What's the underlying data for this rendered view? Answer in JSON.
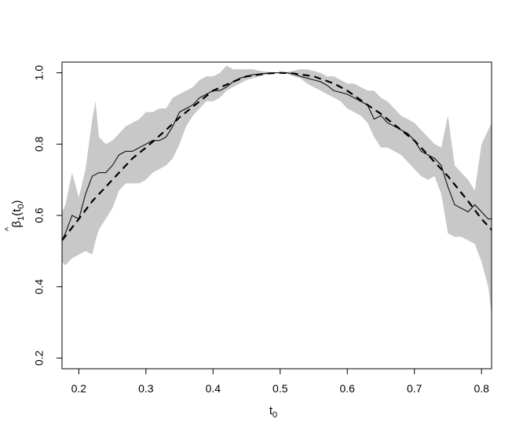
{
  "chart_data": {
    "type": "line",
    "title": "",
    "xlabel": {
      "base": "t",
      "sub": "0"
    },
    "ylabel": {
      "hat": "^",
      "base": "β",
      "sub1": "1",
      "open": "(t",
      "sub2": "0",
      "close": ")"
    },
    "xlim": [
      0.175,
      0.815
    ],
    "ylim": [
      0.17,
      1.03
    ],
    "xticks": [
      0.2,
      0.3,
      0.4,
      0.5,
      0.6,
      0.7,
      0.8
    ],
    "xtick_labels": [
      "0.2",
      "0.3",
      "0.4",
      "0.5",
      "0.6",
      "0.7",
      "0.8"
    ],
    "yticks": [
      0.2,
      0.4,
      0.6,
      0.8,
      1.0
    ],
    "ytick_labels": [
      "0.2",
      "0.4",
      "0.6",
      "0.8",
      "1.0"
    ],
    "grid": false,
    "colors": {
      "band": "#c8c8c8",
      "line": "#000000",
      "axis": "#000000"
    },
    "band": {
      "x": [
        0.175,
        0.18,
        0.19,
        0.2,
        0.21,
        0.22,
        0.225,
        0.23,
        0.24,
        0.25,
        0.26,
        0.27,
        0.28,
        0.29,
        0.3,
        0.31,
        0.32,
        0.33,
        0.34,
        0.35,
        0.36,
        0.37,
        0.38,
        0.39,
        0.4,
        0.41,
        0.42,
        0.43,
        0.44,
        0.45,
        0.46,
        0.47,
        0.48,
        0.49,
        0.5,
        0.51,
        0.52,
        0.53,
        0.54,
        0.55,
        0.56,
        0.57,
        0.58,
        0.59,
        0.6,
        0.61,
        0.62,
        0.63,
        0.64,
        0.65,
        0.66,
        0.67,
        0.68,
        0.69,
        0.7,
        0.71,
        0.72,
        0.73,
        0.74,
        0.75,
        0.76,
        0.77,
        0.78,
        0.79,
        0.8,
        0.81,
        0.815
      ],
      "upper": [
        0.61,
        0.63,
        0.72,
        0.65,
        0.73,
        0.87,
        0.92,
        0.82,
        0.8,
        0.81,
        0.83,
        0.85,
        0.86,
        0.87,
        0.89,
        0.89,
        0.9,
        0.9,
        0.93,
        0.94,
        0.95,
        0.96,
        0.98,
        0.99,
        0.99,
        1.0,
        1.02,
        1.01,
        1.01,
        1.01,
        1.01,
        1.005,
        1.003,
        1.001,
        1.0,
        1.002,
        1.006,
        1.01,
        1.01,
        1.005,
        1.0,
        0.99,
        0.99,
        0.98,
        0.97,
        0.97,
        0.96,
        0.95,
        0.95,
        0.93,
        0.92,
        0.9,
        0.88,
        0.87,
        0.86,
        0.84,
        0.82,
        0.8,
        0.79,
        0.88,
        0.74,
        0.72,
        0.7,
        0.67,
        0.8,
        0.84,
        0.86
      ],
      "lower": [
        0.47,
        0.46,
        0.48,
        0.49,
        0.5,
        0.49,
        0.53,
        0.56,
        0.59,
        0.62,
        0.67,
        0.69,
        0.69,
        0.69,
        0.7,
        0.72,
        0.73,
        0.74,
        0.76,
        0.8,
        0.85,
        0.88,
        0.9,
        0.92,
        0.92,
        0.93,
        0.95,
        0.96,
        0.97,
        0.98,
        0.985,
        0.99,
        0.995,
        0.998,
        1.0,
        0.998,
        0.99,
        0.985,
        0.97,
        0.96,
        0.95,
        0.94,
        0.93,
        0.92,
        0.9,
        0.89,
        0.88,
        0.86,
        0.82,
        0.79,
        0.79,
        0.78,
        0.77,
        0.75,
        0.73,
        0.71,
        0.7,
        0.71,
        0.66,
        0.55,
        0.54,
        0.54,
        0.53,
        0.52,
        0.47,
        0.4,
        0.32
      ]
    },
    "series": [
      {
        "style": "solid",
        "x": [
          0.175,
          0.18,
          0.19,
          0.2,
          0.21,
          0.22,
          0.23,
          0.24,
          0.25,
          0.26,
          0.27,
          0.28,
          0.29,
          0.3,
          0.31,
          0.32,
          0.33,
          0.34,
          0.35,
          0.36,
          0.37,
          0.38,
          0.39,
          0.4,
          0.41,
          0.42,
          0.43,
          0.44,
          0.45,
          0.46,
          0.47,
          0.48,
          0.49,
          0.5,
          0.51,
          0.52,
          0.53,
          0.54,
          0.55,
          0.56,
          0.57,
          0.58,
          0.59,
          0.6,
          0.61,
          0.62,
          0.63,
          0.64,
          0.65,
          0.66,
          0.67,
          0.68,
          0.69,
          0.7,
          0.71,
          0.72,
          0.73,
          0.74,
          0.75,
          0.76,
          0.77,
          0.78,
          0.79,
          0.8,
          0.81,
          0.815
        ],
        "y": [
          0.53,
          0.55,
          0.6,
          0.59,
          0.66,
          0.71,
          0.72,
          0.72,
          0.74,
          0.77,
          0.78,
          0.78,
          0.79,
          0.8,
          0.81,
          0.81,
          0.82,
          0.85,
          0.89,
          0.9,
          0.91,
          0.93,
          0.94,
          0.95,
          0.95,
          0.96,
          0.975,
          0.985,
          0.99,
          0.995,
          0.997,
          0.999,
          1.0,
          1.0,
          1.0,
          0.997,
          0.99,
          0.985,
          0.98,
          0.975,
          0.965,
          0.95,
          0.945,
          0.94,
          0.93,
          0.92,
          0.91,
          0.87,
          0.88,
          0.86,
          0.85,
          0.84,
          0.83,
          0.81,
          0.78,
          0.77,
          0.76,
          0.74,
          0.68,
          0.63,
          0.62,
          0.61,
          0.63,
          0.61,
          0.59,
          0.59
        ]
      },
      {
        "style": "dashed",
        "x": [
          0.175,
          0.2,
          0.22,
          0.25,
          0.28,
          0.3,
          0.33,
          0.35,
          0.38,
          0.4,
          0.43,
          0.45,
          0.48,
          0.5,
          0.52,
          0.55,
          0.58,
          0.6,
          0.63,
          0.65,
          0.68,
          0.7,
          0.73,
          0.75,
          0.78,
          0.8,
          0.815
        ],
        "y": [
          0.53,
          0.59,
          0.64,
          0.7,
          0.76,
          0.79,
          0.84,
          0.875,
          0.92,
          0.95,
          0.975,
          0.99,
          0.998,
          1.0,
          0.998,
          0.99,
          0.97,
          0.95,
          0.91,
          0.885,
          0.84,
          0.81,
          0.75,
          0.71,
          0.64,
          0.59,
          0.56
        ]
      }
    ]
  }
}
